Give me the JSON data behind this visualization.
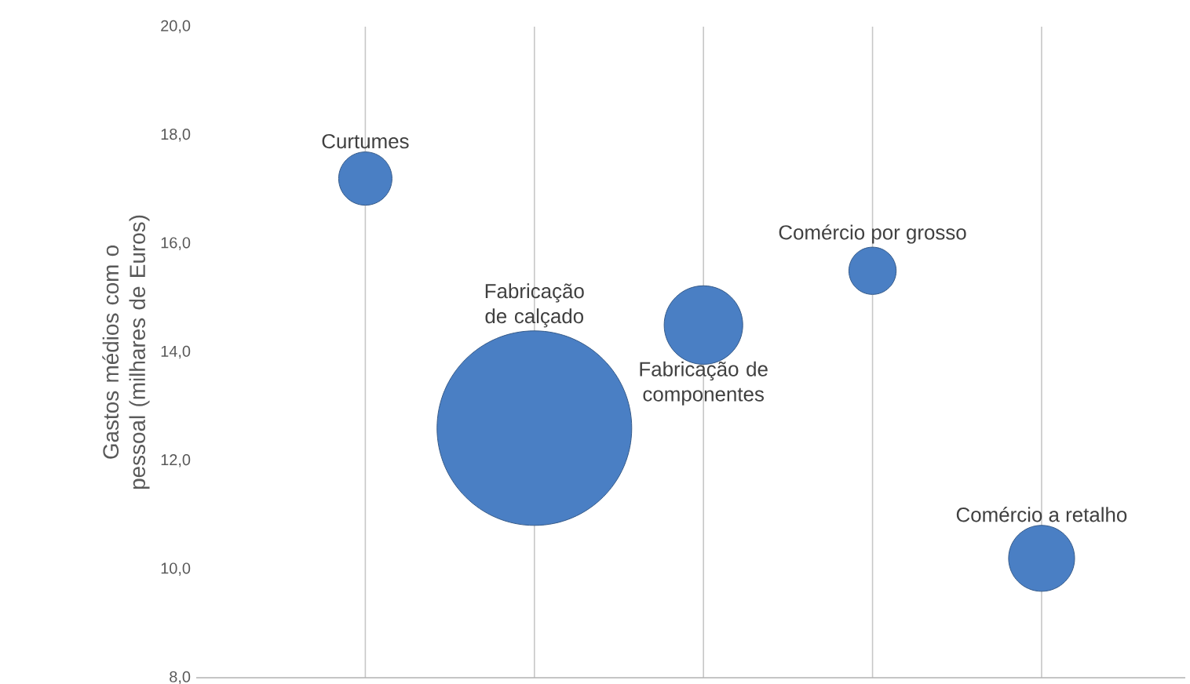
{
  "chart_data": {
    "type": "bubble",
    "ylabel": "Gastos médios com o pessoal (milhares de Euros)",
    "categories": [
      null,
      null,
      null,
      null,
      null
    ],
    "series": [
      {
        "name": "Curtumes",
        "color": "#4a7fc4",
        "values": [
          17.2,
          null,
          null,
          null,
          null
        ],
        "sizes": [
          0.075,
          null,
          null,
          null,
          null
        ]
      },
      {
        "name": "Fabricação de calçado",
        "color": "#4a7fc4",
        "values": [
          null,
          12.6,
          null,
          null,
          null
        ],
        "sizes": [
          null,
          1,
          null,
          null,
          null
        ]
      },
      {
        "name": "Fabricação de componentes",
        "color": "#4a7fc4",
        "values": [
          null,
          null,
          14.5,
          null,
          null
        ],
        "sizes": [
          null,
          null,
          0.163,
          null,
          null
        ]
      },
      {
        "name": "Comércio por grosso",
        "color": "#4a7fc4",
        "values": [
          null,
          null,
          null,
          15.5,
          null
        ],
        "sizes": [
          null,
          null,
          null,
          0.059,
          null
        ]
      },
      {
        "name": "Comércio a retalho",
        "color": "#4a7fc4",
        "values": [
          null,
          null,
          null,
          null,
          10.2
        ],
        "sizes": [
          null,
          null,
          null,
          null,
          0.115
        ]
      }
    ],
    "ylim": [
      8,
      20
    ],
    "yticks": [
      {
        "value": 8,
        "label": "8,0"
      },
      {
        "value": 10,
        "label": "10,0"
      },
      {
        "value": 12,
        "label": "12,0"
      },
      {
        "value": 14,
        "label": "14,0"
      },
      {
        "value": 16,
        "label": "16,0"
      },
      {
        "value": 18,
        "label": "18,0"
      },
      {
        "value": 20,
        "label": "20,0"
      }
    ],
    "grid": "x"
  }
}
